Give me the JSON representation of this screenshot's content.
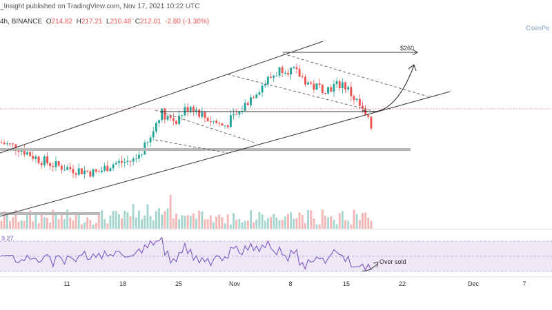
{
  "header": {
    "publisher": "_Insight published on TradingView.com, Nov 17, 2021 10:22 UTC",
    "symbol_line": "4h, BINANCE",
    "o_label": "O",
    "o_value": "214.82",
    "h_label": "H",
    "h_value": "217.21",
    "l_label": "L",
    "l_value": "210.48",
    "c_label": "C",
    "c_value": "212.01",
    "change": "-2.80 (-1.30%)"
  },
  "watermark": "CoinPe",
  "colors": {
    "up": "#26a69a",
    "down": "#ef5350",
    "volume_up": "#a5d6d0",
    "volume_down": "#f4b6b5",
    "rsi_line": "#7e57c2",
    "rsi_band": "#ede7f6",
    "support": "#b8b8b8",
    "trendline": "#333333"
  },
  "chart_data": {
    "type": "candlestick",
    "interval": "4h",
    "x_tick_labels": [
      "11",
      "18",
      "25",
      "Nov",
      "8",
      "15",
      "22",
      "Dec",
      "7"
    ],
    "price_path": [
      {
        "x": 0.0,
        "y": 205
      },
      {
        "x": 0.05,
        "y": 202
      },
      {
        "x": 0.1,
        "y": 196
      },
      {
        "x": 0.15,
        "y": 192
      },
      {
        "x": 0.2,
        "y": 190
      },
      {
        "x": 0.26,
        "y": 188
      },
      {
        "x": 0.3,
        "y": 193
      },
      {
        "x": 0.36,
        "y": 195
      },
      {
        "x": 0.4,
        "y": 205
      },
      {
        "x": 0.43,
        "y": 222
      },
      {
        "x": 0.47,
        "y": 217
      },
      {
        "x": 0.51,
        "y": 226
      },
      {
        "x": 0.55,
        "y": 219
      },
      {
        "x": 0.6,
        "y": 214
      },
      {
        "x": 0.64,
        "y": 221
      },
      {
        "x": 0.68,
        "y": 232
      },
      {
        "x": 0.72,
        "y": 240
      },
      {
        "x": 0.76,
        "y": 247
      },
      {
        "x": 0.8,
        "y": 243
      },
      {
        "x": 0.84,
        "y": 236
      },
      {
        "x": 0.88,
        "y": 235
      },
      {
        "x": 0.92,
        "y": 238
      },
      {
        "x": 0.96,
        "y": 227
      },
      {
        "x": 1.0,
        "y": 212
      }
    ],
    "annotations": {
      "target_label": "$260",
      "oversold_label": "Over sold",
      "rsi_value_label": "9.27"
    }
  }
}
